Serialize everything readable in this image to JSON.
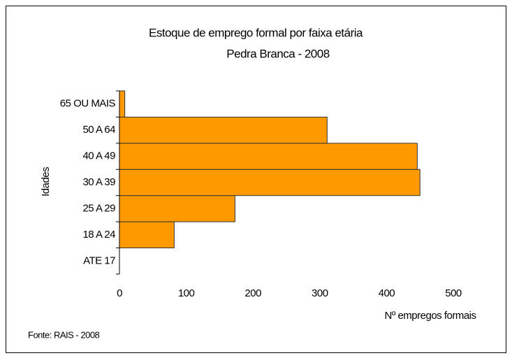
{
  "chart_data": {
    "type": "hbar",
    "title": "Estoque de emprego formal por faixa etária",
    "subtitle": "Pedra Branca - 2008",
    "y_label": "Idades",
    "x_label": "Nº empregos formais",
    "source": "Fonte: RAIS - 2008",
    "categories": [
      "ATE 17",
      "18 A 24",
      "25 A 29",
      "30 A 39",
      "40 A 49",
      "50 A 64",
      "65 OU MAIS"
    ],
    "values": [
      0,
      82,
      173,
      450,
      446,
      311,
      8
    ],
    "color": "#ff9900",
    "xlim": [
      0,
      500
    ],
    "xticks": [
      0,
      100,
      200,
      300,
      400,
      500
    ],
    "grid": false
  }
}
